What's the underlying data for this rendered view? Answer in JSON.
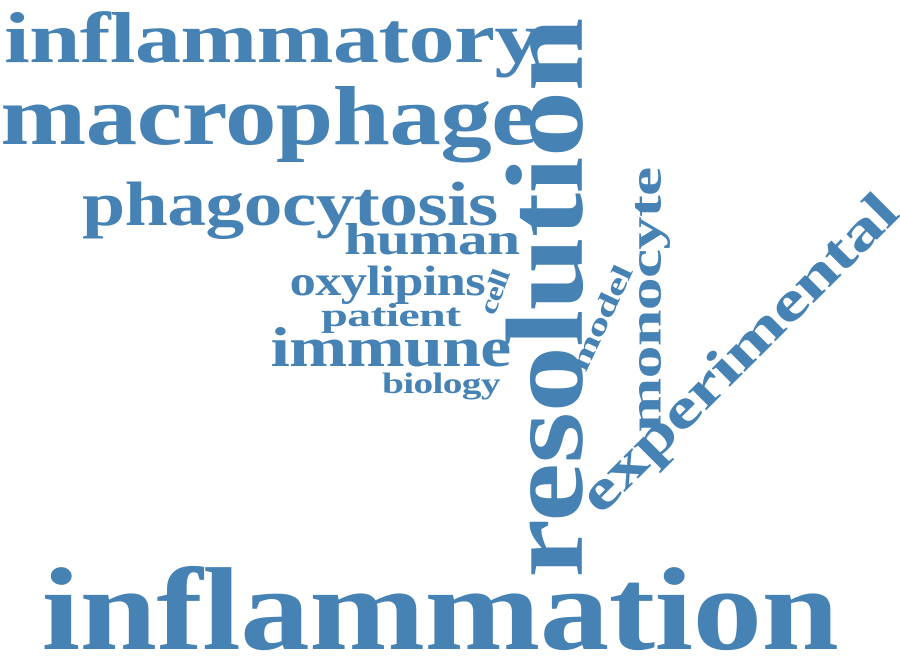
{
  "word_cloud": {
    "color": "#4682b4",
    "words": [
      {
        "id": "inflammation",
        "text": "inflammation"
      },
      {
        "id": "resolution",
        "text": "resolution"
      },
      {
        "id": "inflammatory",
        "text": "inflammatory"
      },
      {
        "id": "macrophage",
        "text": "macrophage"
      },
      {
        "id": "phagocytosis",
        "text": "phagocytosis"
      },
      {
        "id": "experimental",
        "text": "experimental"
      },
      {
        "id": "monocyte",
        "text": "monocyte"
      },
      {
        "id": "immune",
        "text": "immune"
      },
      {
        "id": "human",
        "text": "human"
      },
      {
        "id": "oxylipins",
        "text": "oxylipins"
      },
      {
        "id": "patient",
        "text": "patient"
      },
      {
        "id": "biology",
        "text": "biology"
      },
      {
        "id": "model",
        "text": "model"
      },
      {
        "id": "cell",
        "text": "cell"
      }
    ]
  }
}
